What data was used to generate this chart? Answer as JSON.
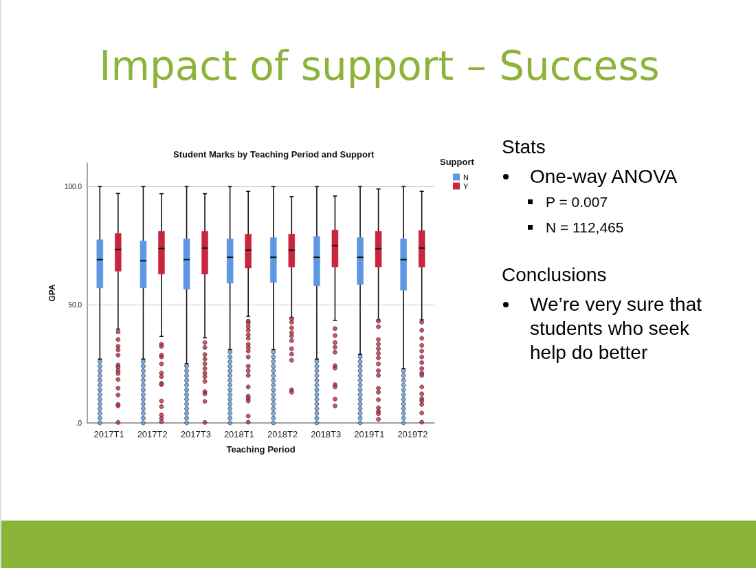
{
  "chart_data": {
    "type": "box",
    "title": "Impact of support – Success",
    "subtitle": "Student Marks by Teaching Period and Support",
    "xlabel": "Teaching Period",
    "ylabel": "GPA",
    "legend_title": "Support",
    "categories": [
      "2017T1",
      "2017T2",
      "2017T3",
      "2018T1",
      "2018T2",
      "2018T3",
      "2019T1",
      "2019T2"
    ],
    "series": [
      {
        "name": "N",
        "color": "#5e97e3",
        "boxes": [
          {
            "low": 27,
            "q1": 57.1,
            "median": 69.1,
            "q3": 77.5,
            "high": 100,
            "outliers": [
              26,
              24,
              22,
              20,
              18,
              16,
              14,
              12,
              10,
              8,
              6,
              4,
              2,
              0
            ]
          },
          {
            "low": 27,
            "q1": 57.1,
            "median": 68.6,
            "q3": 77,
            "high": 100,
            "outliers": [
              26,
              24,
              22,
              20,
              18,
              16,
              14,
              12,
              10,
              8,
              6,
              4,
              2,
              0
            ]
          },
          {
            "low": 25,
            "q1": 56.6,
            "median": 69.1,
            "q3": 77.9,
            "high": 100,
            "outliers": [
              24,
              22,
              20,
              18,
              16,
              14,
              12,
              10,
              8,
              6,
              4,
              2,
              0
            ]
          },
          {
            "low": 31,
            "q1": 59.1,
            "median": 70.1,
            "q3": 77.9,
            "high": 100,
            "outliers": [
              30,
              28,
              26,
              24,
              22,
              20,
              18,
              16,
              14,
              12,
              10,
              8,
              6,
              4,
              2,
              0
            ]
          },
          {
            "low": 31,
            "q1": 59.5,
            "median": 70.1,
            "q3": 78.4,
            "high": 100,
            "outliers": [
              30,
              28,
              26,
              24,
              22,
              20,
              18,
              16,
              14,
              12,
              10,
              8,
              6,
              4,
              2,
              0
            ]
          },
          {
            "low": 27,
            "q1": 58,
            "median": 70.1,
            "q3": 78.9,
            "high": 100,
            "outliers": [
              26,
              24,
              22,
              20,
              18,
              16,
              14,
              12,
              10,
              8,
              6,
              4,
              2,
              0
            ]
          },
          {
            "low": 29,
            "q1": 58.6,
            "median": 70.1,
            "q3": 78.4,
            "high": 100,
            "outliers": [
              28,
              26,
              24,
              22,
              20,
              18,
              16,
              14,
              12,
              10,
              8,
              6,
              4,
              2,
              0
            ]
          },
          {
            "low": 23,
            "q1": 56.1,
            "median": 69.1,
            "q3": 77.9,
            "high": 100,
            "outliers": [
              22,
              20,
              18,
              16,
              14,
              12,
              10,
              8,
              6,
              4,
              2,
              0
            ]
          }
        ]
      },
      {
        "name": "Y",
        "color": "#c8263e",
        "boxes": [
          {
            "low": 39.7,
            "q1": 64.2,
            "median": 73.4,
            "q3": 80.2,
            "high": 97.1,
            "outliers": [
              38.5,
              35.3,
              32.4,
              30.9,
              28.7,
              24.5,
              23.5,
              22.1,
              20.9,
              18.4,
              14.7,
              11.8,
              7.8,
              7.2,
              0.2
            ]
          },
          {
            "low": 36.6,
            "q1": 63,
            "median": 73.8,
            "q3": 81.1,
            "high": 97,
            "outliers": [
              33.3,
              32.4,
              28.7,
              27.9,
              25,
              21.1,
              19.6,
              16.7,
              16.2,
              9.3,
              6.9,
              3.4,
              2,
              0.5
            ]
          },
          {
            "low": 36,
            "q1": 63,
            "median": 74,
            "q3": 81.1,
            "high": 97,
            "outliers": [
              34,
              31.9,
              28.9,
              27,
              25,
              23,
              21.1,
              19.6,
              17.6,
              13.2,
              12.3,
              9.1,
              0.2
            ]
          },
          {
            "low": 45.1,
            "q1": 65.5,
            "median": 73.1,
            "q3": 79.9,
            "high": 98,
            "outliers": [
              43.1,
              42.2,
              40.7,
              39.2,
              37.3,
              35.8,
              33.3,
              31.9,
              30.4,
              27.9,
              24,
              22.1,
              20.1,
              15.2,
              11.3,
              10.3,
              9.3,
              2.9,
              0.3
            ]
          },
          {
            "low": 44.6,
            "q1": 66,
            "median": 73.1,
            "q3": 79.9,
            "high": 95.8,
            "outliers": [
              44.1,
              42.6,
              40.2,
              38.2,
              36.8,
              34.8,
              31.4,
              29.1,
              26.5,
              14,
              13
            ]
          },
          {
            "low": 43.4,
            "q1": 66,
            "median": 75,
            "q3": 81.6,
            "high": 96,
            "outliers": [
              39.9,
              37,
              34,
              32,
              29.9,
              24.2,
              23.2,
              16.2,
              15.2,
              10.1,
              7.2
            ]
          },
          {
            "low": 43.6,
            "q1": 66,
            "median": 73.7,
            "q3": 81.1,
            "high": 99,
            "outliers": [
              43.1,
              40.7,
              35.3,
              33.3,
              31.4,
              29.4,
              27.5,
              25,
              22.1,
              20.1,
              14.7,
              13,
              9.8,
              6.4,
              4.9,
              3.9,
              1.5
            ]
          },
          {
            "low": 43.6,
            "q1": 66,
            "median": 74,
            "q3": 81.4,
            "high": 98,
            "outliers": [
              42.6,
              39.2,
              35.8,
              32.8,
              30.4,
              27.9,
              25.5,
              23,
              21.1,
              20.1,
              15.2,
              12.3,
              10.3,
              9.3,
              7.8,
              4.2,
              0.3
            ]
          }
        ]
      }
    ],
    "ylim": [
      0,
      110
    ],
    "yticks": [
      {
        "value": 0,
        "label": ".0"
      },
      {
        "value": 50,
        "label": "50.0"
      },
      {
        "value": 100,
        "label": "100.0"
      }
    ],
    "grid": "y",
    "legend": "top right",
    "annotations": [
      "Stats",
      "One-way ANOVA",
      "P = 0.007",
      "N = 112,465",
      "Conclusions",
      "We’re very sure that students who seek help do better"
    ]
  }
}
